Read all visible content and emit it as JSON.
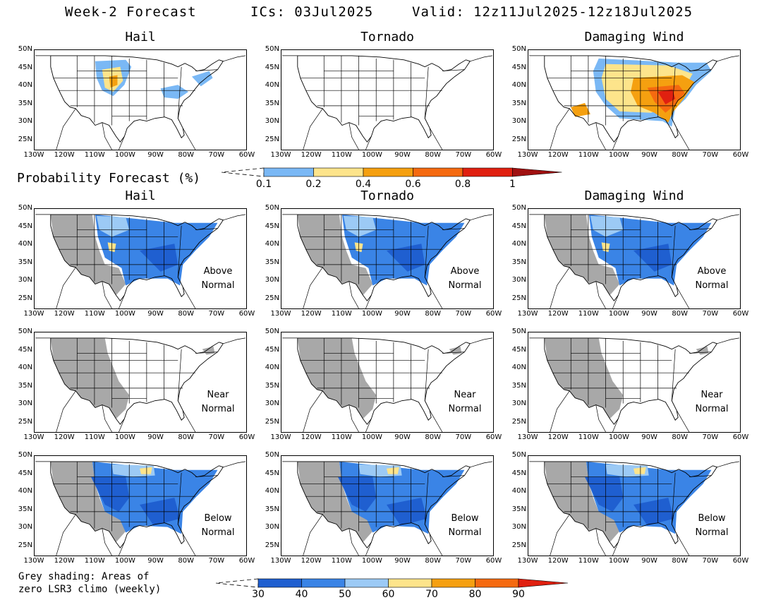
{
  "header": {
    "title": "Week-2 Forecast",
    "ics": "ICs: 03Jul2025",
    "valid": "Valid: 12z11Jul2025-12z18Jul2025"
  },
  "columns": [
    "Hail",
    "Tornado",
    "Damaging Wind"
  ],
  "lat_labels": [
    "50N",
    "45N",
    "40N",
    "35N",
    "30N",
    "25N"
  ],
  "lon_labels": [
    "130W",
    "120W",
    "110W",
    "100W",
    "90W",
    "80W",
    "70W",
    "60W"
  ],
  "prob_section": {
    "title": "Probability Forecast (%)",
    "colorbar": {
      "labels": [
        "0.1",
        "0.2",
        "0.4",
        "0.6",
        "0.8",
        "1"
      ],
      "colors": [
        "#7ab8f5",
        "#fde48b",
        "#f5a010",
        "#f56a10",
        "#e02010",
        "#a01010"
      ]
    }
  },
  "rows": [
    {
      "label_line1": "Above",
      "label_line2": "Normal"
    },
    {
      "label_line1": "Near",
      "label_line2": "Normal"
    },
    {
      "label_line1": "Below",
      "label_line2": "Normal"
    }
  ],
  "anomaly_colorbar": {
    "labels": [
      "30",
      "40",
      "50",
      "60",
      "70",
      "80",
      "90"
    ],
    "colors": [
      "#1f5fd0",
      "#3a84e6",
      "#9ccaf5",
      "#fde48b",
      "#f5a010",
      "#f56a10",
      "#e02010"
    ]
  },
  "footnote": {
    "line1": "Grey shading: Areas of",
    "line2": "zero LSR3 climo (weekly)"
  },
  "colors": {
    "grey": "#a8a8a8",
    "outline": "#000000"
  }
}
